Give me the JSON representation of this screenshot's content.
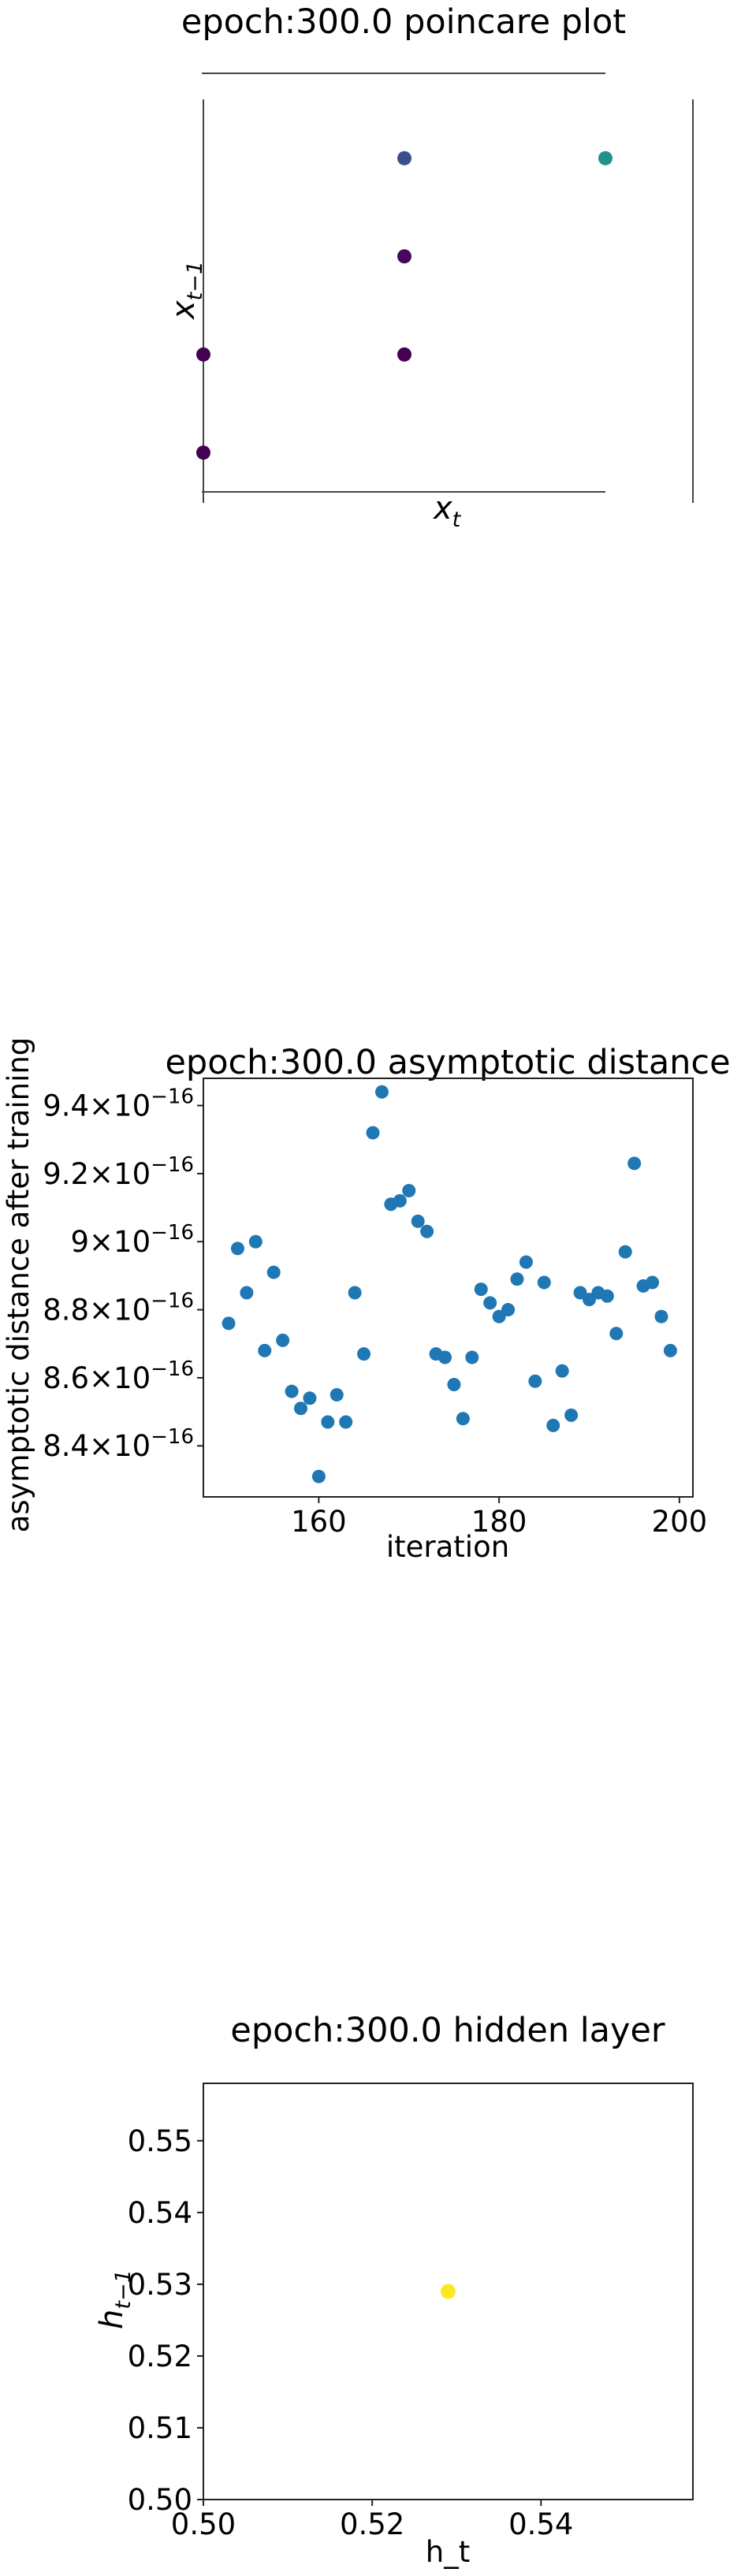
{
  "chart_data": [
    {
      "type": "scatter",
      "title": "epoch:300.0 poincare plot",
      "xlabel": "x_t",
      "xlabel_sub": "t",
      "ylabel": "x_{t-1}",
      "ylabel_sub": "t−1",
      "ticks_visible": false,
      "points": [
        {
          "x": 0.0,
          "y": 0.1,
          "color": "#440154"
        },
        {
          "x": 0.0,
          "y": 0.35,
          "color": "#440154"
        },
        {
          "x": 0.5,
          "y": 0.35,
          "color": "#440154"
        },
        {
          "x": 0.5,
          "y": 0.6,
          "color": "#46085c"
        },
        {
          "x": 0.5,
          "y": 0.85,
          "color": "#3b4f8a"
        },
        {
          "x": 1.0,
          "y": 0.85,
          "color": "#21918c"
        }
      ]
    },
    {
      "type": "scatter",
      "title": "epoch:300.0 asymptotic distance",
      "xlabel": "iteration",
      "ylabel": "asymptotic distance after training",
      "xlim": [
        147.2,
        201.5
      ],
      "ylim": [
        8.25e-16,
        9.48e-16
      ],
      "xticks": [
        160,
        180,
        200
      ],
      "yticks": [
        {
          "value": 8.4e-16,
          "mantissa": "8.4",
          "exponent": "−16"
        },
        {
          "value": 8.6e-16,
          "mantissa": "8.6",
          "exponent": "−16"
        },
        {
          "value": 8.8e-16,
          "mantissa": "8.8",
          "exponent": "−16"
        },
        {
          "value": 9e-16,
          "mantissa": "9",
          "exponent": "−16"
        },
        {
          "value": 9.2e-16,
          "mantissa": "9.2",
          "exponent": "−16"
        },
        {
          "value": 9.4e-16,
          "mantissa": "9.4",
          "exponent": "−16"
        }
      ],
      "color": "#1f77b4",
      "points": [
        [
          150,
          8.76e-16
        ],
        [
          151,
          8.98e-16
        ],
        [
          152,
          8.85e-16
        ],
        [
          153,
          9e-16
        ],
        [
          154,
          8.68e-16
        ],
        [
          155,
          8.91e-16
        ],
        [
          156,
          8.71e-16
        ],
        [
          157,
          8.56e-16
        ],
        [
          158,
          8.51e-16
        ],
        [
          159,
          8.54e-16
        ],
        [
          160,
          8.31e-16
        ],
        [
          161,
          8.47e-16
        ],
        [
          162,
          8.55e-16
        ],
        [
          163,
          8.47e-16
        ],
        [
          164,
          8.85e-16
        ],
        [
          165,
          8.67e-16
        ],
        [
          166,
          9.32e-16
        ],
        [
          167,
          9.44e-16
        ],
        [
          168,
          9.11e-16
        ],
        [
          169,
          9.12e-16
        ],
        [
          170,
          9.15e-16
        ],
        [
          171,
          9.06e-16
        ],
        [
          172,
          9.03e-16
        ],
        [
          173,
          8.67e-16
        ],
        [
          174,
          8.66e-16
        ],
        [
          175,
          8.58e-16
        ],
        [
          176,
          8.48e-16
        ],
        [
          177,
          8.66e-16
        ],
        [
          178,
          8.86e-16
        ],
        [
          179,
          8.82e-16
        ],
        [
          180,
          8.78e-16
        ],
        [
          181,
          8.8e-16
        ],
        [
          182,
          8.89e-16
        ],
        [
          183,
          8.94e-16
        ],
        [
          184,
          8.59e-16
        ],
        [
          185,
          8.88e-16
        ],
        [
          186,
          8.46e-16
        ],
        [
          187,
          8.62e-16
        ],
        [
          188,
          8.49e-16
        ],
        [
          189,
          8.85e-16
        ],
        [
          190,
          8.83e-16
        ],
        [
          191,
          8.85e-16
        ],
        [
          192,
          8.84e-16
        ],
        [
          193,
          8.73e-16
        ],
        [
          194,
          8.97e-16
        ],
        [
          195,
          9.23e-16
        ],
        [
          196,
          8.87e-16
        ],
        [
          197,
          8.88e-16
        ],
        [
          198,
          8.78e-16
        ],
        [
          199,
          8.68e-16
        ]
      ]
    },
    {
      "type": "scatter",
      "title": "epoch:300.0 hidden layer",
      "xlabel": "h_t",
      "ylabel": "h_{t-1}",
      "ylabel_sub": "t−1",
      "xlim": [
        0.5,
        0.558
      ],
      "ylim": [
        0.5,
        0.558
      ],
      "xticks": [
        "0.50",
        "0.52",
        "0.54"
      ],
      "yticks": [
        "0.50",
        "0.51",
        "0.52",
        "0.53",
        "0.54",
        "0.55"
      ],
      "color": "#fde725",
      "points": [
        [
          0.529,
          0.529
        ]
      ]
    }
  ]
}
